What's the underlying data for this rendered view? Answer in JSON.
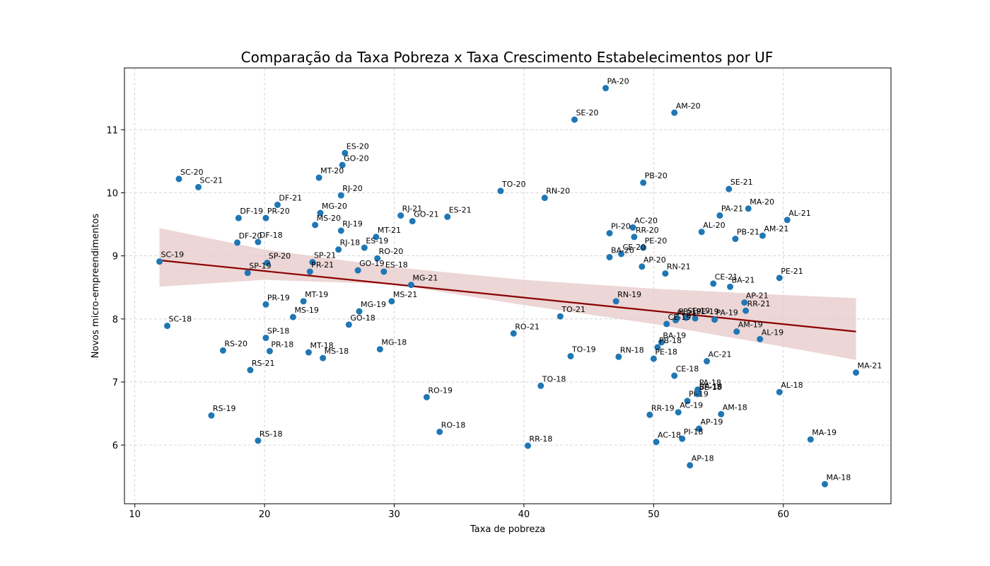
{
  "chart_data": {
    "type": "scatter",
    "title": "Comparação da Taxa Pobreza x Taxa Crescimento Estabelecimentos por UF",
    "xlabel": "Taxa de pobreza",
    "ylabel": "Novos micro-empreendimentos",
    "xlim": [
      9.2,
      68.3
    ],
    "ylim": [
      5.07,
      11.98
    ],
    "xticks": [
      10,
      20,
      30,
      40,
      50,
      60
    ],
    "yticks": [
      6,
      7,
      8,
      9,
      10,
      11
    ],
    "grid": true,
    "colors": {
      "points": "#1f77b4",
      "regression": "#8b0000",
      "band": "#e6c8c8"
    },
    "regression": {
      "x": [
        11.9,
        65.6
      ],
      "y": [
        8.93,
        7.8
      ]
    },
    "confidence_band": {
      "x": [
        11.9,
        20,
        30,
        40,
        50,
        60,
        65.6
      ],
      "upper": [
        9.44,
        9.1,
        8.82,
        8.62,
        8.48,
        8.38,
        8.33
      ],
      "lower": [
        8.51,
        8.62,
        8.55,
        8.22,
        7.92,
        7.56,
        7.35
      ]
    },
    "points": [
      {
        "label": "SC-20",
        "x": 13.4,
        "y": 10.22
      },
      {
        "label": "SC-21",
        "x": 14.9,
        "y": 10.09
      },
      {
        "label": "SC-19",
        "x": 11.9,
        "y": 8.91
      },
      {
        "label": "SC-18",
        "x": 12.5,
        "y": 7.89
      },
      {
        "label": "DF-19",
        "x": 18.0,
        "y": 9.6
      },
      {
        "label": "DF-20",
        "x": 17.9,
        "y": 9.21
      },
      {
        "label": "DF-18",
        "x": 19.5,
        "y": 9.22
      },
      {
        "label": "DF-21",
        "x": 21.0,
        "y": 9.81
      },
      {
        "label": "PR-20",
        "x": 20.1,
        "y": 9.6
      },
      {
        "label": "PR-19",
        "x": 20.1,
        "y": 8.23
      },
      {
        "label": "PR-21",
        "x": 23.5,
        "y": 8.75
      },
      {
        "label": "PR-18",
        "x": 20.4,
        "y": 7.49
      },
      {
        "label": "SP-20",
        "x": 20.2,
        "y": 8.89
      },
      {
        "label": "SP-19",
        "x": 18.7,
        "y": 8.73
      },
      {
        "label": "SP-21",
        "x": 23.7,
        "y": 8.9
      },
      {
        "label": "SP-18",
        "x": 20.1,
        "y": 7.7
      },
      {
        "label": "RS-20",
        "x": 16.8,
        "y": 7.5
      },
      {
        "label": "RS-21",
        "x": 18.9,
        "y": 7.19
      },
      {
        "label": "RS-19",
        "x": 15.9,
        "y": 6.47
      },
      {
        "label": "RS-18",
        "x": 19.5,
        "y": 6.07
      },
      {
        "label": "ES-20",
        "x": 26.2,
        "y": 10.63
      },
      {
        "label": "ES-21",
        "x": 34.1,
        "y": 9.62
      },
      {
        "label": "ES-19",
        "x": 27.7,
        "y": 9.13
      },
      {
        "label": "ES-18",
        "x": 29.2,
        "y": 8.75
      },
      {
        "label": "GO-20",
        "x": 26.0,
        "y": 10.44
      },
      {
        "label": "GO-21",
        "x": 31.4,
        "y": 9.55
      },
      {
        "label": "GO-19",
        "x": 27.2,
        "y": 8.77
      },
      {
        "label": "GO-18",
        "x": 26.5,
        "y": 7.91
      },
      {
        "label": "MT-20",
        "x": 24.2,
        "y": 10.24
      },
      {
        "label": "MT-21",
        "x": 28.6,
        "y": 9.3
      },
      {
        "label": "MT-19",
        "x": 23.0,
        "y": 8.28
      },
      {
        "label": "MT-18",
        "x": 23.4,
        "y": 7.47
      },
      {
        "label": "RJ-20",
        "x": 25.9,
        "y": 9.96
      },
      {
        "label": "RJ-21",
        "x": 30.5,
        "y": 9.64
      },
      {
        "label": "RJ-19",
        "x": 25.9,
        "y": 9.4
      },
      {
        "label": "RJ-18",
        "x": 25.7,
        "y": 9.1
      },
      {
        "label": "MG-20",
        "x": 24.3,
        "y": 9.68
      },
      {
        "label": "MG-21",
        "x": 31.3,
        "y": 8.54
      },
      {
        "label": "MG-19",
        "x": 27.3,
        "y": 8.12
      },
      {
        "label": "MG-18",
        "x": 28.9,
        "y": 7.52
      },
      {
        "label": "MS-20",
        "x": 23.9,
        "y": 9.49
      },
      {
        "label": "MS-21",
        "x": 29.8,
        "y": 8.28
      },
      {
        "label": "MS-19",
        "x": 22.2,
        "y": 8.03
      },
      {
        "label": "MS-18",
        "x": 24.5,
        "y": 7.38
      },
      {
        "label": "RO-20",
        "x": 28.7,
        "y": 8.96
      },
      {
        "label": "RO-21",
        "x": 39.2,
        "y": 7.77
      },
      {
        "label": "RO-19",
        "x": 32.5,
        "y": 6.76
      },
      {
        "label": "RO-18",
        "x": 33.5,
        "y": 6.21
      },
      {
        "label": "TO-20",
        "x": 38.2,
        "y": 10.03
      },
      {
        "label": "TO-21",
        "x": 42.8,
        "y": 8.04
      },
      {
        "label": "TO-19",
        "x": 43.6,
        "y": 7.41
      },
      {
        "label": "TO-18",
        "x": 41.3,
        "y": 6.94
      },
      {
        "label": "RN-20",
        "x": 41.6,
        "y": 9.92
      },
      {
        "label": "RN-21",
        "x": 50.9,
        "y": 8.72
      },
      {
        "label": "RN-19",
        "x": 47.1,
        "y": 8.28
      },
      {
        "label": "RN-18",
        "x": 47.3,
        "y": 7.4
      },
      {
        "label": "RR-20",
        "x": 48.5,
        "y": 9.3
      },
      {
        "label": "RR-21",
        "x": 57.1,
        "y": 8.13
      },
      {
        "label": "RR-19",
        "x": 49.7,
        "y": 6.48
      },
      {
        "label": "RR-18",
        "x": 40.3,
        "y": 5.99
      },
      {
        "label": "PA-20",
        "x": 46.3,
        "y": 11.66
      },
      {
        "label": "PA-21",
        "x": 55.1,
        "y": 9.64
      },
      {
        "label": "PA-19",
        "x": 54.7,
        "y": 7.99
      },
      {
        "label": "PA-18",
        "x": 53.4,
        "y": 6.88
      },
      {
        "label": "AM-20",
        "x": 51.6,
        "y": 11.27
      },
      {
        "label": "AM-21",
        "x": 58.4,
        "y": 9.32
      },
      {
        "label": "AM-19",
        "x": 56.4,
        "y": 7.8
      },
      {
        "label": "AM-18",
        "x": 55.2,
        "y": 6.49
      },
      {
        "label": "SE-20",
        "x": 43.9,
        "y": 11.16
      },
      {
        "label": "SE-21",
        "x": 55.8,
        "y": 10.06
      },
      {
        "label": "SE-19",
        "x": 52.5,
        "y": 8.02
      },
      {
        "label": "SE-18",
        "x": 53.4,
        "y": 6.81
      },
      {
        "label": "PB-20",
        "x": 49.2,
        "y": 10.16
      },
      {
        "label": "PB-21",
        "x": 56.3,
        "y": 9.27
      },
      {
        "label": "PB-19",
        "x": 51.8,
        "y": 8.01
      },
      {
        "label": "PB-18",
        "x": 50.3,
        "y": 7.55
      },
      {
        "label": "MA-20",
        "x": 57.3,
        "y": 9.75
      },
      {
        "label": "MA-21",
        "x": 65.6,
        "y": 7.15
      },
      {
        "label": "MA-19",
        "x": 62.1,
        "y": 6.09
      },
      {
        "label": "MA-18",
        "x": 63.2,
        "y": 5.38
      },
      {
        "label": "AL-21",
        "x": 60.3,
        "y": 9.57
      },
      {
        "label": "AL-20",
        "x": 53.7,
        "y": 9.38
      },
      {
        "label": "AL-19",
        "x": 58.2,
        "y": 7.68
      },
      {
        "label": "AL-18",
        "x": 59.7,
        "y": 6.84
      },
      {
        "label": "PI-20",
        "x": 46.6,
        "y": 9.36
      },
      {
        "label": "PI-21",
        "x": 51.7,
        "y": 7.98
      },
      {
        "label": "PI-19",
        "x": 52.6,
        "y": 6.7
      },
      {
        "label": "PI-18",
        "x": 52.2,
        "y": 6.1
      },
      {
        "label": "AC-20",
        "x": 48.4,
        "y": 9.45
      },
      {
        "label": "AC-21",
        "x": 54.1,
        "y": 7.33
      },
      {
        "label": "AC-19",
        "x": 51.9,
        "y": 6.52
      },
      {
        "label": "AC-18",
        "x": 50.2,
        "y": 6.05
      },
      {
        "label": "CE-20",
        "x": 47.5,
        "y": 9.03
      },
      {
        "label": "CE-21",
        "x": 54.6,
        "y": 8.56
      },
      {
        "label": "CE-19",
        "x": 51.0,
        "y": 7.92
      },
      {
        "label": "CE-18",
        "x": 51.6,
        "y": 7.1
      },
      {
        "label": "BA-20",
        "x": 46.6,
        "y": 8.98
      },
      {
        "label": "BA-21",
        "x": 55.9,
        "y": 8.51
      },
      {
        "label": "BA-19",
        "x": 50.6,
        "y": 7.63
      },
      {
        "label": "BA-18",
        "x": 53.4,
        "y": 6.82
      },
      {
        "label": "AP-20",
        "x": 49.1,
        "y": 8.83
      },
      {
        "label": "AP-21",
        "x": 57.0,
        "y": 8.26
      },
      {
        "label": "AP-19",
        "x": 53.5,
        "y": 6.26
      },
      {
        "label": "AP-18",
        "x": 52.8,
        "y": 5.68
      },
      {
        "label": "PE-20",
        "x": 49.2,
        "y": 9.13
      },
      {
        "label": "PE-21",
        "x": 59.7,
        "y": 8.65
      },
      {
        "label": "PE-19",
        "x": 53.2,
        "y": 8.01
      },
      {
        "label": "PE-18",
        "x": 50.0,
        "y": 7.37
      }
    ]
  }
}
